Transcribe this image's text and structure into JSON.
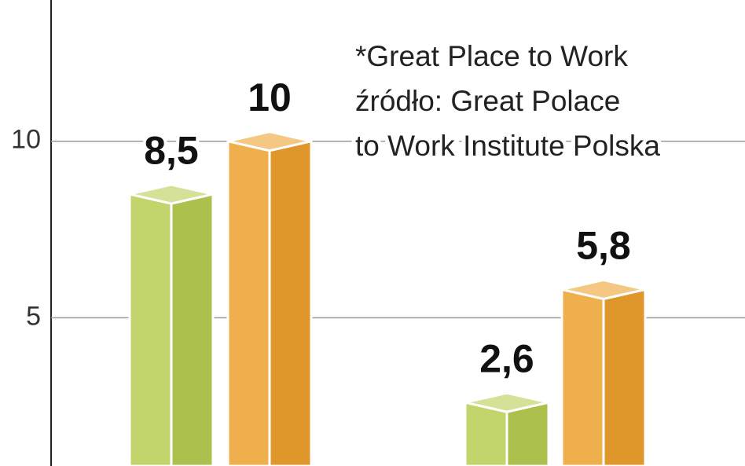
{
  "chart_data": {
    "type": "bar3d",
    "categories": [
      null,
      null
    ],
    "series": [
      {
        "color": "#b7cd52",
        "values": [
          8.5,
          2.6
        ],
        "value_labels": [
          "8,5",
          "2,6"
        ]
      },
      {
        "color": "#eda12e",
        "values": [
          10,
          5.8
        ],
        "value_labels": [
          "10",
          "5,8"
        ]
      }
    ],
    "annotations": [
      "*Great Place to Work",
      "źródło: Great Polace",
      "to Work Institute Polska"
    ],
    "ylim": [
      0.8,
      14
    ],
    "yticks": [
      5,
      10
    ],
    "grid": true
  }
}
